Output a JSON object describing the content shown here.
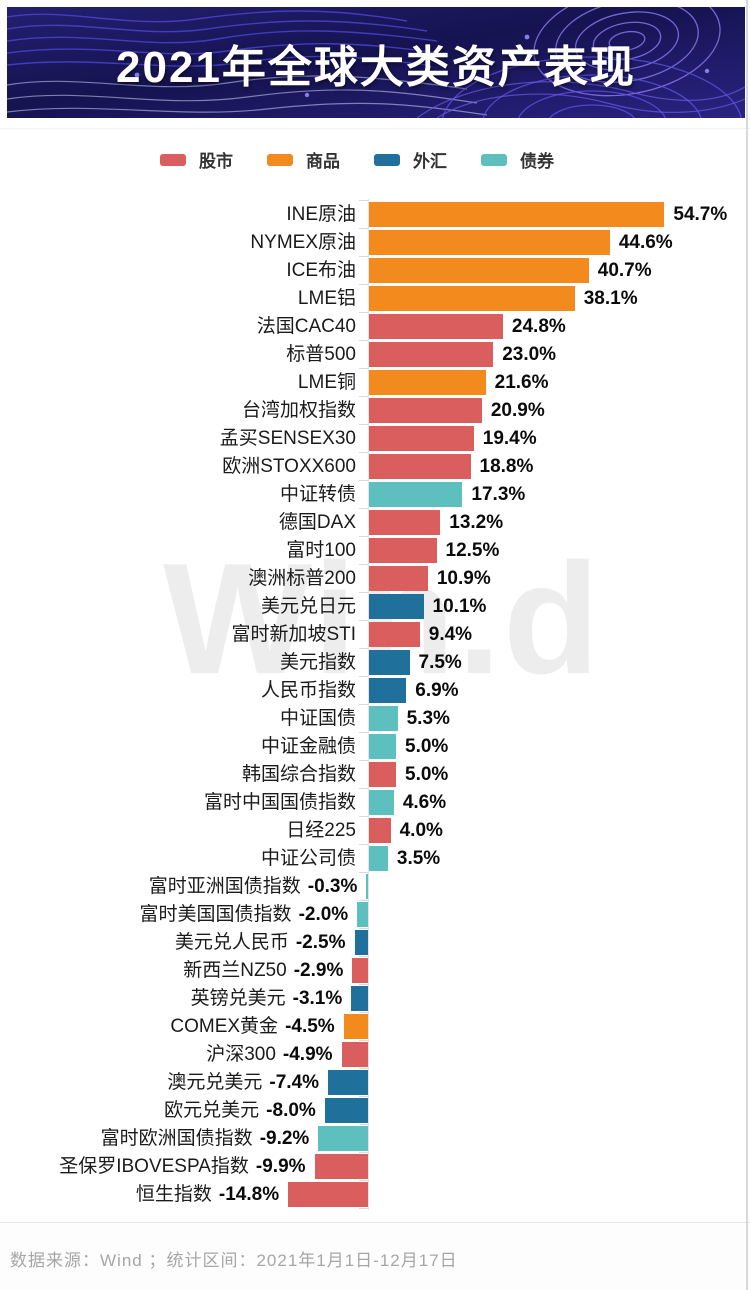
{
  "header": {
    "title": "2021年全球大类资产表现"
  },
  "legend": {
    "items": [
      {
        "label": "股市",
        "color": "#DB5E5E"
      },
      {
        "label": "商品",
        "color": "#F28A1D"
      },
      {
        "label": "外汇",
        "color": "#1F709B"
      },
      {
        "label": "债券",
        "color": "#5EC0BE"
      }
    ]
  },
  "watermark": "Win.d",
  "footer": {
    "text": "数据来源：Wind ；统计区间：2021年1月1日-12月17日"
  },
  "chart_data": {
    "type": "bar",
    "orientation": "horizontal",
    "title": "2021年全球大类资产表现",
    "unit": "%",
    "xlim": [
      -20,
      60
    ],
    "legend_position": "top",
    "grid": false,
    "groups": [
      "股市",
      "商品",
      "外汇",
      "债券"
    ],
    "rows": [
      {
        "label": "INE原油",
        "value": 54.7,
        "display": "54.7%",
        "group": "商品"
      },
      {
        "label": "NYMEX原油",
        "value": 44.6,
        "display": "44.6%",
        "group": "商品"
      },
      {
        "label": "ICE布油",
        "value": 40.7,
        "display": "40.7%",
        "group": "商品"
      },
      {
        "label": "LME铝",
        "value": 38.1,
        "display": "38.1%",
        "group": "商品"
      },
      {
        "label": "法国CAC40",
        "value": 24.8,
        "display": "24.8%",
        "group": "股市"
      },
      {
        "label": "标普500",
        "value": 23.0,
        "display": "23.0%",
        "group": "股市"
      },
      {
        "label": "LME铜",
        "value": 21.6,
        "display": "21.6%",
        "group": "商品"
      },
      {
        "label": "台湾加权指数",
        "value": 20.9,
        "display": "20.9%",
        "group": "股市"
      },
      {
        "label": "孟买SENSEX30",
        "value": 19.4,
        "display": "19.4%",
        "group": "股市"
      },
      {
        "label": "欧洲STOXX600",
        "value": 18.8,
        "display": "18.8%",
        "group": "股市"
      },
      {
        "label": "中证转债",
        "value": 17.3,
        "display": "17.3%",
        "group": "债券"
      },
      {
        "label": "德国DAX",
        "value": 13.2,
        "display": "13.2%",
        "group": "股市"
      },
      {
        "label": "富时100",
        "value": 12.5,
        "display": "12.5%",
        "group": "股市"
      },
      {
        "label": "澳洲标普200",
        "value": 10.9,
        "display": "10.9%",
        "group": "股市"
      },
      {
        "label": "美元兑日元",
        "value": 10.1,
        "display": "10.1%",
        "group": "外汇"
      },
      {
        "label": "富时新加坡STI",
        "value": 9.4,
        "display": "9.4%",
        "group": "股市"
      },
      {
        "label": "美元指数",
        "value": 7.5,
        "display": "7.5%",
        "group": "外汇"
      },
      {
        "label": "人民币指数",
        "value": 6.9,
        "display": "6.9%",
        "group": "外汇"
      },
      {
        "label": "中证国债",
        "value": 5.3,
        "display": "5.3%",
        "group": "债券"
      },
      {
        "label": "中证金融债",
        "value": 5.0,
        "display": "5.0%",
        "group": "债券"
      },
      {
        "label": "韩国综合指数",
        "value": 5.0,
        "display": "5.0%",
        "group": "股市"
      },
      {
        "label": "富时中国国债指数",
        "value": 4.6,
        "display": "4.6%",
        "group": "债券"
      },
      {
        "label": "日经225",
        "value": 4.0,
        "display": "4.0%",
        "group": "股市"
      },
      {
        "label": "中证公司债",
        "value": 3.5,
        "display": "3.5%",
        "group": "债券"
      },
      {
        "label": "富时亚洲国债指数",
        "value": -0.3,
        "display": "-0.3%",
        "group": "债券"
      },
      {
        "label": "富时美国国债指数",
        "value": -2.0,
        "display": "-2.0%",
        "group": "债券"
      },
      {
        "label": "美元兑人民币",
        "value": -2.5,
        "display": "-2.5%",
        "group": "外汇"
      },
      {
        "label": "新西兰NZ50",
        "value": -2.9,
        "display": "-2.9%",
        "group": "股市"
      },
      {
        "label": "英镑兑美元",
        "value": -3.1,
        "display": "-3.1%",
        "group": "外汇"
      },
      {
        "label": "COMEX黄金",
        "value": -4.5,
        "display": "-4.5%",
        "group": "商品"
      },
      {
        "label": "沪深300",
        "value": -4.9,
        "display": "-4.9%",
        "group": "股市"
      },
      {
        "label": "澳元兑美元",
        "value": -7.4,
        "display": "-7.4%",
        "group": "外汇"
      },
      {
        "label": "欧元兑美元",
        "value": -8.0,
        "display": "-8.0%",
        "group": "外汇"
      },
      {
        "label": "富时欧洲国债指数",
        "value": -9.2,
        "display": "-9.2%",
        "group": "债券"
      },
      {
        "label": "圣保罗IBOVESPA指数",
        "value": -9.9,
        "display": "-9.9%",
        "group": "股市"
      },
      {
        "label": "恒生指数",
        "value": -14.8,
        "display": "-14.8%",
        "group": "股市"
      }
    ]
  }
}
